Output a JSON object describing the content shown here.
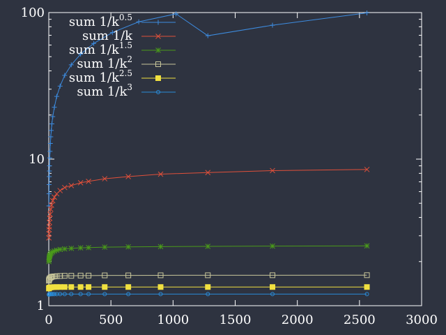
{
  "chart_data": {
    "type": "line",
    "xlim": [
      0,
      3000
    ],
    "ylim": [
      1,
      100
    ],
    "yscale": "log",
    "x_ticks": [
      0,
      500,
      1000,
      1500,
      2000,
      2500,
      3000
    ],
    "y_ticks": [
      1,
      10,
      100
    ],
    "grid": false,
    "legend_position": "top-left",
    "series": [
      {
        "name": "sum 1/k^0.5",
        "label_base": "sum 1/k",
        "label_exp": "0.5",
        "color": "#3d8ce0",
        "marker": "plus",
        "points": [
          [
            1,
            4.8
          ],
          [
            2,
            5.8
          ],
          [
            3,
            6.7
          ],
          [
            4,
            7.6
          ],
          [
            5,
            8.3
          ],
          [
            6,
            9.0
          ],
          [
            8,
            10.2
          ],
          [
            10,
            11.3
          ],
          [
            13,
            12.8
          ],
          [
            16,
            14.2
          ],
          [
            20,
            15.7
          ],
          [
            25,
            17.4
          ],
          [
            32,
            19.5
          ],
          [
            45,
            22.6
          ],
          [
            64,
            26.8
          ],
          [
            91,
            31.5
          ],
          [
            128,
            37.3
          ],
          [
            181,
            44.0
          ],
          [
            256,
            52.0
          ],
          [
            362,
            61.6
          ],
          [
            512,
            73.1
          ],
          [
            724,
            86.5
          ],
          [
            1024,
            98.0
          ],
          [
            1280,
            69.5
          ],
          [
            1800,
            82.0
          ],
          [
            2560,
            99.5
          ]
        ]
      },
      {
        "name": "sum 1/k",
        "label_base": "sum 1/k",
        "label_exp": "",
        "color": "#e0503a",
        "marker": "cross",
        "points": [
          [
            1,
            2.9
          ],
          [
            2,
            3.1
          ],
          [
            3,
            3.3
          ],
          [
            4,
            3.45
          ],
          [
            6,
            3.7
          ],
          [
            8,
            3.95
          ],
          [
            11,
            4.2
          ],
          [
            16,
            4.55
          ],
          [
            22,
            4.85
          ],
          [
            32,
            5.2
          ],
          [
            45,
            5.5
          ],
          [
            64,
            5.8
          ],
          [
            91,
            6.1
          ],
          [
            128,
            6.4
          ],
          [
            181,
            6.6
          ],
          [
            256,
            6.9
          ],
          [
            320,
            7.05
          ],
          [
            450,
            7.35
          ],
          [
            640,
            7.6
          ],
          [
            900,
            7.9
          ],
          [
            1280,
            8.1
          ],
          [
            1800,
            8.35
          ],
          [
            2560,
            8.5
          ]
        ]
      },
      {
        "name": "sum 1/k^1.5",
        "label_base": "sum 1/k",
        "label_exp": "1.5",
        "color": "#4a9a1a",
        "marker": "star",
        "points": [
          [
            1,
            2.0
          ],
          [
            2,
            2.05
          ],
          [
            3,
            2.1
          ],
          [
            4,
            2.13
          ],
          [
            6,
            2.17
          ],
          [
            8,
            2.2
          ],
          [
            11,
            2.23
          ],
          [
            16,
            2.27
          ],
          [
            22,
            2.3
          ],
          [
            32,
            2.33
          ],
          [
            45,
            2.36
          ],
          [
            64,
            2.39
          ],
          [
            91,
            2.42
          ],
          [
            128,
            2.44
          ],
          [
            181,
            2.46
          ],
          [
            256,
            2.48
          ],
          [
            320,
            2.49
          ],
          [
            450,
            2.51
          ],
          [
            640,
            2.52
          ],
          [
            900,
            2.53
          ],
          [
            1280,
            2.54
          ],
          [
            1800,
            2.55
          ],
          [
            2560,
            2.56
          ]
        ]
      },
      {
        "name": "sum 1/k^2",
        "label_base": "sum 1/k",
        "label_exp": "2",
        "color": "#c8c69a",
        "marker": "square-open",
        "points": [
          [
            1,
            1.48
          ],
          [
            2,
            1.5
          ],
          [
            4,
            1.52
          ],
          [
            8,
            1.54
          ],
          [
            16,
            1.56
          ],
          [
            22,
            1.57
          ],
          [
            32,
            1.58
          ],
          [
            45,
            1.585
          ],
          [
            64,
            1.59
          ],
          [
            91,
            1.595
          ],
          [
            128,
            1.6
          ],
          [
            181,
            1.6
          ],
          [
            256,
            1.605
          ],
          [
            320,
            1.605
          ],
          [
            450,
            1.61
          ],
          [
            640,
            1.61
          ],
          [
            900,
            1.612
          ],
          [
            1280,
            1.613
          ],
          [
            1800,
            1.614
          ],
          [
            2560,
            1.615
          ]
        ]
      },
      {
        "name": "sum 1/k^2.5",
        "label_base": "sum 1/k",
        "label_exp": "2.5",
        "color": "#f0e040",
        "marker": "square-filled",
        "points": [
          [
            1,
            1.31
          ],
          [
            2,
            1.32
          ],
          [
            4,
            1.325
          ],
          [
            8,
            1.33
          ],
          [
            16,
            1.335
          ],
          [
            22,
            1.335
          ],
          [
            32,
            1.338
          ],
          [
            45,
            1.34
          ],
          [
            64,
            1.34
          ],
          [
            91,
            1.341
          ],
          [
            128,
            1.341
          ],
          [
            181,
            1.341
          ],
          [
            256,
            1.341
          ],
          [
            320,
            1.341
          ],
          [
            450,
            1.341
          ],
          [
            640,
            1.341
          ],
          [
            900,
            1.341
          ],
          [
            1280,
            1.341
          ],
          [
            1800,
            1.341
          ],
          [
            2560,
            1.341
          ]
        ]
      },
      {
        "name": "sum 1/k^3",
        "label_base": "sum 1/k",
        "label_exp": "3",
        "color": "#2a8cd8",
        "marker": "circle-open",
        "points": [
          [
            1,
            1.19
          ],
          [
            2,
            1.195
          ],
          [
            4,
            1.198
          ],
          [
            8,
            1.2
          ],
          [
            16,
            1.2
          ],
          [
            22,
            1.2
          ],
          [
            32,
            1.2
          ],
          [
            45,
            1.2
          ],
          [
            64,
            1.2
          ],
          [
            91,
            1.2
          ],
          [
            128,
            1.2
          ],
          [
            181,
            1.2
          ],
          [
            256,
            1.2
          ],
          [
            320,
            1.2
          ],
          [
            450,
            1.2
          ],
          [
            640,
            1.2
          ],
          [
            900,
            1.2
          ],
          [
            1280,
            1.2
          ],
          [
            1800,
            1.2
          ],
          [
            2560,
            1.2
          ]
        ]
      }
    ]
  }
}
